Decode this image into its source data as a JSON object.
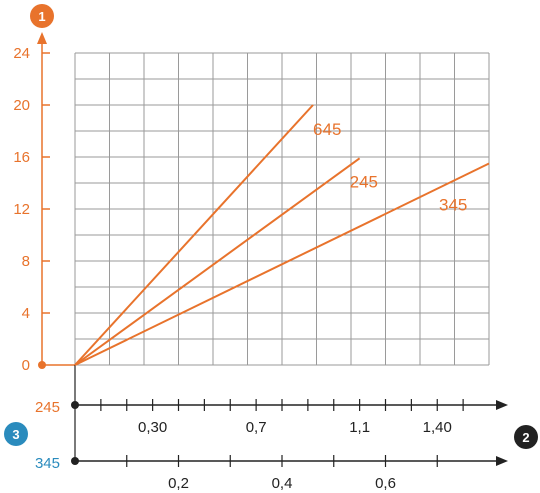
{
  "colors": {
    "accent": "#e8732c",
    "grid": "#9a9a9a",
    "axis": "#222222",
    "badge_y": "#e8732c",
    "badge_x": "#222222",
    "badge_secondary": "#2a8bbd"
  },
  "badges": {
    "y_axis": "1",
    "x_axis": "2",
    "secondary": "3"
  },
  "chart_data": {
    "type": "line",
    "ylim": [
      0,
      24
    ],
    "yticks": [
      "0",
      "4",
      "8",
      "12",
      "16",
      "20",
      "24"
    ],
    "grid": true,
    "x_axes": [
      {
        "name": "245",
        "xlim": [
          0,
          1.6
        ],
        "tick_values": [
          0.1,
          0.2,
          0.3,
          0.4,
          0.5,
          0.6,
          0.7,
          0.8,
          0.9,
          1.0,
          1.1,
          1.2,
          1.3,
          1.4,
          1.5
        ],
        "labels": [
          {
            "x": 0.3,
            "text": "0,30"
          },
          {
            "x": 0.7,
            "text": "0,7"
          },
          {
            "x": 1.1,
            "text": "1,1"
          },
          {
            "x": 1.4,
            "text": "1,40"
          }
        ]
      },
      {
        "name": "345",
        "xlim": [
          0,
          0.8
        ],
        "tick_values": [
          0.1,
          0.2,
          0.3,
          0.4,
          0.5,
          0.6,
          0.7
        ],
        "labels": [
          {
            "x": 0.2,
            "text": "0,2"
          },
          {
            "x": 0.4,
            "text": "0,4"
          },
          {
            "x": 0.6,
            "text": "0,6"
          }
        ]
      }
    ],
    "series": [
      {
        "name": "645",
        "x_axis": "245",
        "x": [
          0,
          0.92
        ],
        "y": [
          0,
          20.0
        ]
      },
      {
        "name": "245",
        "x_axis": "245",
        "x": [
          0,
          1.1
        ],
        "y": [
          0,
          15.9
        ]
      },
      {
        "name": "345",
        "x_axis": "345",
        "x": [
          0,
          0.8
        ],
        "y": [
          0,
          15.5
        ]
      }
    ]
  }
}
